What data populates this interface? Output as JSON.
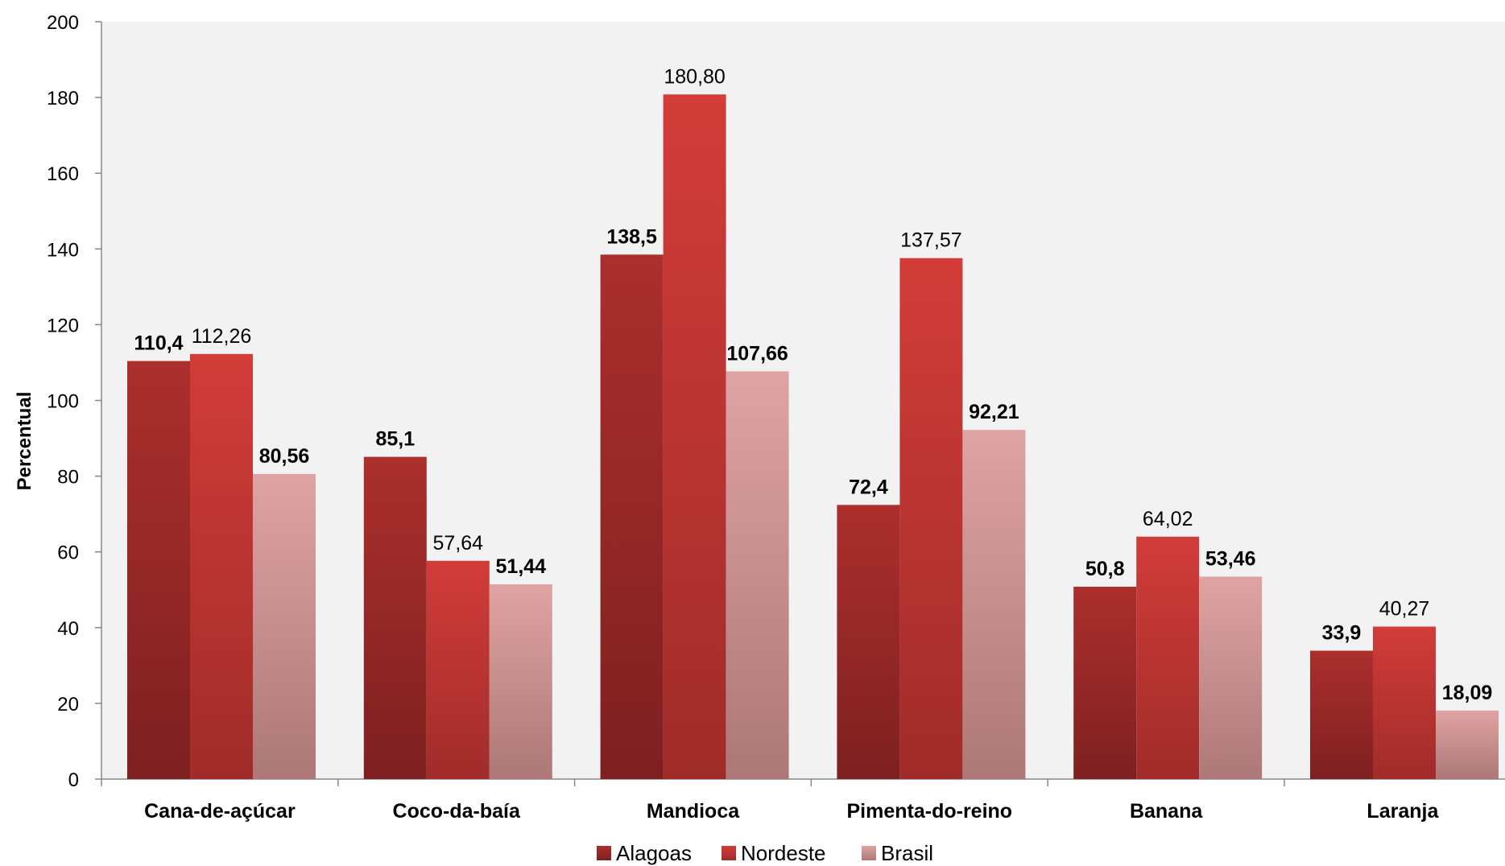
{
  "chart_data": {
    "type": "bar",
    "title": "",
    "xlabel": "",
    "ylabel": "Percentual",
    "ylim": [
      0,
      200
    ],
    "yticks": [
      0,
      20,
      40,
      60,
      80,
      100,
      120,
      140,
      160,
      180,
      200
    ],
    "grid": false,
    "legend_position": "bottom",
    "categories": [
      "Cana-de-açúcar",
      "Coco-da-baía",
      "Mandioca",
      "Pimenta-do-reino",
      "Banana",
      "Laranja"
    ],
    "series": [
      {
        "name": "Alagoas",
        "color": "#a82d2b",
        "values": [
          110.4,
          85.1,
          138.5,
          72.4,
          50.8,
          33.9
        ],
        "labels": [
          "110,4",
          "85,1",
          "138,5",
          "72,4",
          "50,8",
          "33,9"
        ],
        "label_bold": true
      },
      {
        "name": "Nordeste",
        "color": "#d03a37",
        "values": [
          112.26,
          57.64,
          180.8,
          137.57,
          64.02,
          40.27
        ],
        "labels": [
          "112,26",
          "57,64",
          "180,80",
          "137,57",
          "64,02",
          "40,27"
        ],
        "label_bold": false
      },
      {
        "name": "Brasil",
        "color": "#dba0a0",
        "values": [
          80.56,
          51.44,
          107.66,
          92.21,
          53.46,
          18.09
        ],
        "labels": [
          "80,56",
          "51,44",
          "107,66",
          "92,21",
          "53,46",
          "18,09"
        ],
        "label_bold": true
      }
    ]
  }
}
